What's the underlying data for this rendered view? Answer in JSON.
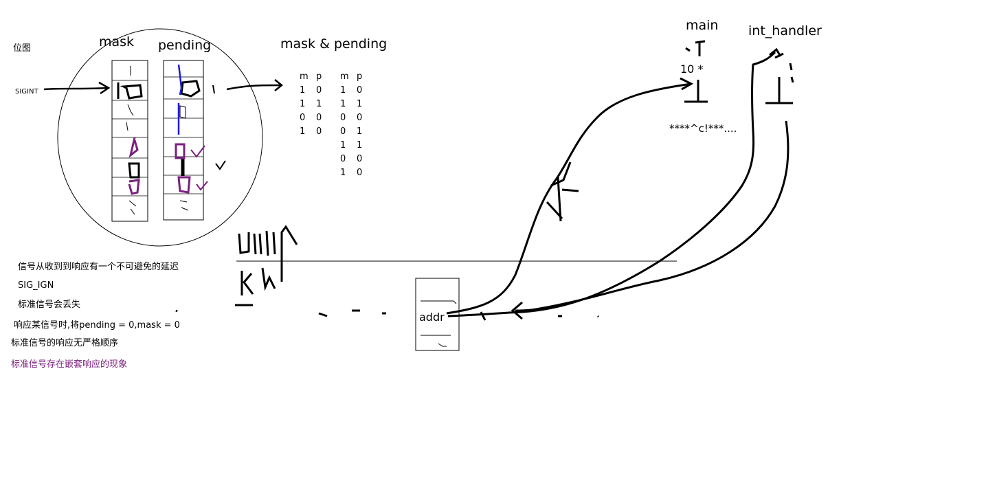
{
  "left": {
    "bitmap_label": "位图",
    "mask_label": "mask",
    "pending_label": "pending",
    "sigint_label": "SIGINT"
  },
  "result_label": "mask & pending",
  "table1": {
    "headers": [
      "m",
      "p"
    ],
    "rows": [
      [
        "1",
        "0"
      ],
      [
        "1",
        "1"
      ],
      [
        "0",
        "0"
      ],
      [
        "1",
        "0"
      ]
    ]
  },
  "table2": {
    "headers": [
      "m",
      "p"
    ],
    "rows": [
      [
        "1",
        "0"
      ],
      [
        "1",
        "1"
      ],
      [
        "0",
        "0"
      ],
      [
        "0",
        "1"
      ],
      [
        "1",
        "1"
      ],
      [
        "0",
        "0"
      ],
      [
        "1",
        "0"
      ]
    ]
  },
  "notes": {
    "delay": "信号从收到到响应有一个不可避免的延迟",
    "sig_ign": "SIG_IGN",
    "lost": "标准信号会丢失",
    "reset": "响应某信号时,将pending = 0,mask = 0",
    "order": "标准信号的响应无严格顺序",
    "nested": "标准信号存在嵌套响应的现象"
  },
  "right": {
    "main_label": "main",
    "handler_label": "int_handler",
    "ten_label": "10 *",
    "output_label": "****^c!***....",
    "addr_label": "addr"
  },
  "colors": {
    "ink": "#000000",
    "blue": "#1a1adc",
    "purple": "#7b1f7f"
  }
}
